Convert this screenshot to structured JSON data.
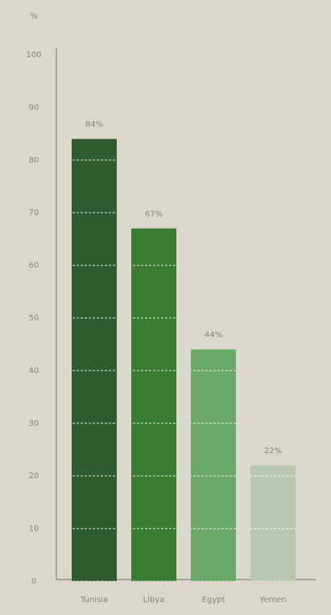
{
  "chart_data": {
    "type": "bar",
    "y_label": "%",
    "categories": [
      "Tunisia",
      "Libya",
      "Egypt",
      "Yemen"
    ],
    "values": [
      84,
      67,
      44,
      22
    ],
    "value_labels": [
      "84%",
      "67%",
      "44%",
      "22%"
    ],
    "colors": [
      "#2f5c2f",
      "#3b7c35",
      "#6aa868",
      "#b8c8b0"
    ],
    "ylim": [
      0,
      100
    ],
    "yticks": [
      0,
      10,
      20,
      30,
      40,
      50,
      60,
      70,
      80,
      90,
      100
    ],
    "grid": true
  }
}
